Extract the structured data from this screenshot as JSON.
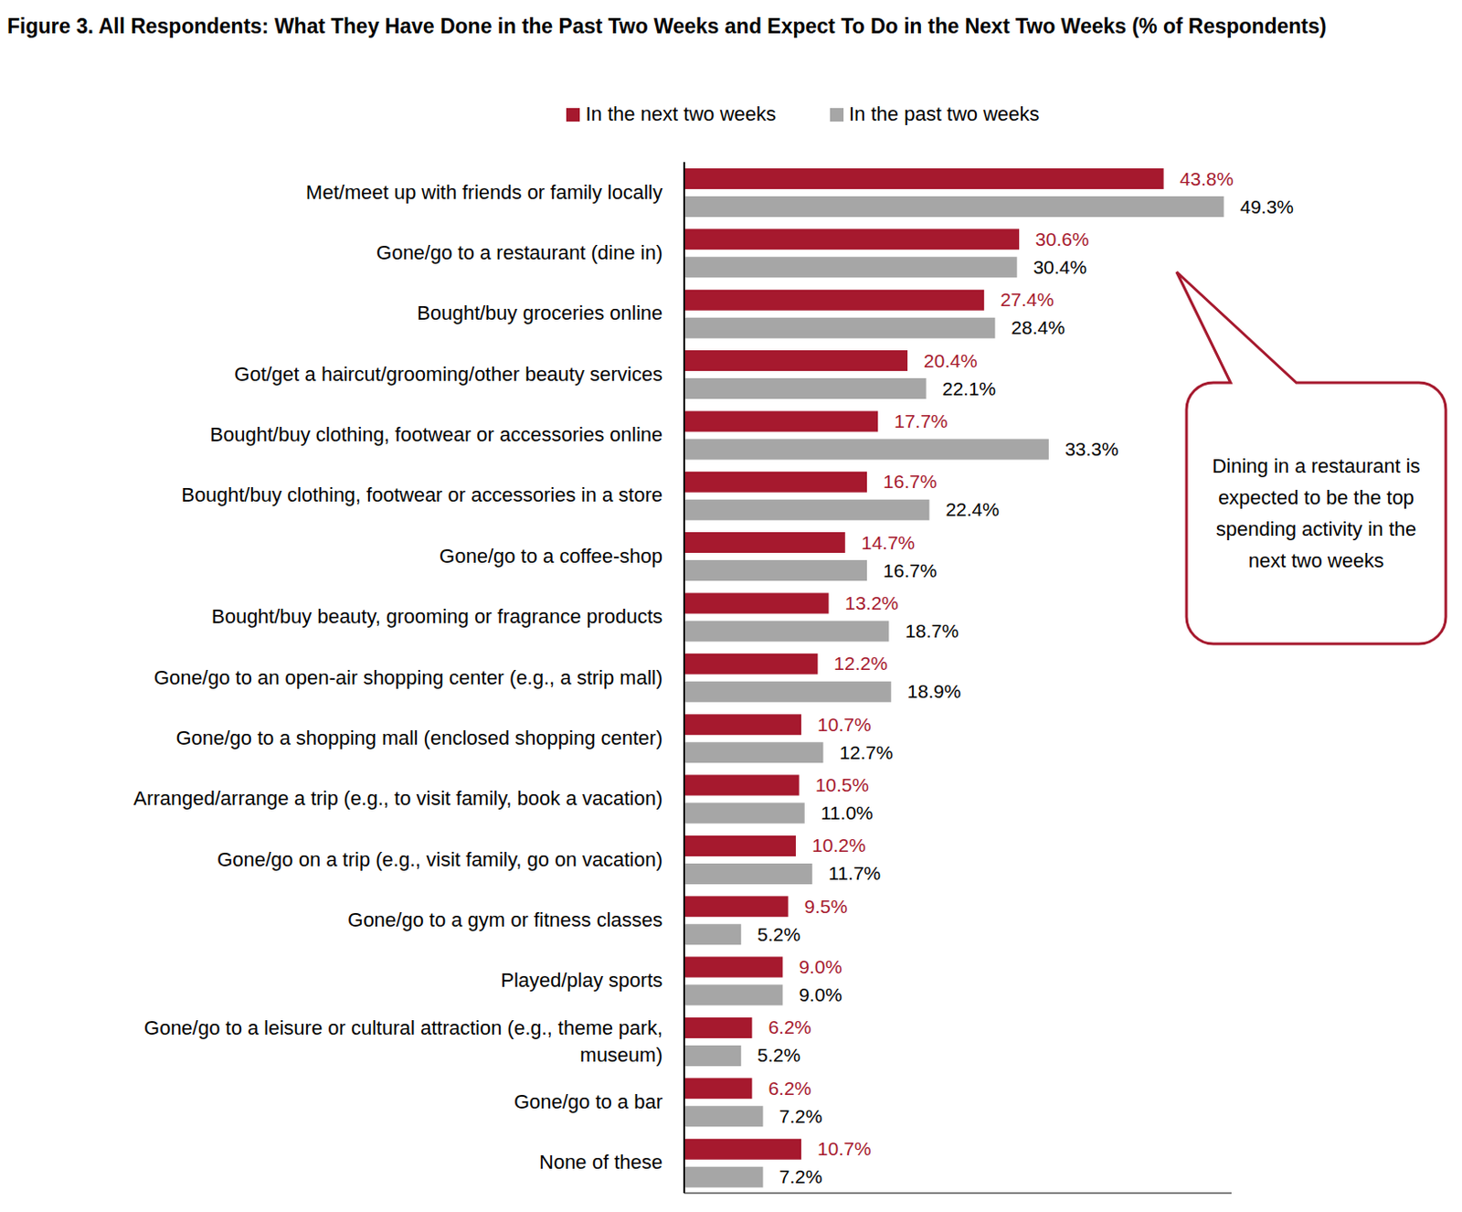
{
  "chart_data": {
    "type": "bar",
    "orientation": "horizontal",
    "title": "Figure 3. All Respondents: What They Have Done in the Past Two Weeks and Expect To Do in the Next Two Weeks (% of Respondents)",
    "categories": [
      "Met/meet up with friends or family locally",
      "Gone/go to a restaurant (dine in)",
      "Bought/buy groceries online",
      "Got/get a haircut/grooming/other beauty services",
      "Bought/buy clothing, footwear or accessories online",
      "Bought/buy clothing, footwear or accessories in a store",
      "Gone/go to a coffee-shop",
      "Bought/buy beauty, grooming or fragrance products",
      "Gone/go to an open-air shopping center (e.g., a strip mall)",
      "Gone/go to a shopping mall (enclosed shopping center)",
      "Arranged/arrange a trip (e.g., to visit family, book a vacation)",
      "Gone/go on a trip (e.g., visit family, go on vacation)",
      "Gone/go to a gym or fitness classes",
      "Played/play sports",
      "Gone/go to a leisure or cultural attraction (e.g., theme park, museum)",
      "Gone/go to a bar",
      "None of these"
    ],
    "series": [
      {
        "name": "In the next two weeks",
        "color": "#A6192E",
        "values": [
          43.8,
          30.6,
          27.4,
          20.4,
          17.7,
          16.7,
          14.7,
          13.2,
          12.2,
          10.7,
          10.5,
          10.2,
          9.5,
          9.0,
          6.2,
          6.2,
          10.7
        ],
        "value_labels": [
          "43.8%",
          "30.6%",
          "27.4%",
          "20.4%",
          "17.7%",
          "16.7%",
          "14.7%",
          "13.2%",
          "12.2%",
          "10.7%",
          "10.5%",
          "10.2%",
          "9.5%",
          "9.0%",
          "6.2%",
          "6.2%",
          "10.7%"
        ]
      },
      {
        "name": "In the past two weeks",
        "color": "#A6A6A6",
        "values": [
          49.3,
          30.4,
          28.4,
          22.1,
          33.3,
          22.4,
          16.7,
          18.7,
          18.9,
          12.7,
          11.0,
          11.7,
          5.2,
          9.0,
          5.2,
          7.2,
          7.2
        ],
        "value_labels": [
          "49.3%",
          "30.4%",
          "28.4%",
          "22.1%",
          "33.3%",
          "22.4%",
          "16.7%",
          "18.7%",
          "18.9%",
          "12.7%",
          "11.0%",
          "11.7%",
          "5.2%",
          "9.0%",
          "5.2%",
          "7.2%",
          "7.2%"
        ]
      }
    ],
    "xlim": [
      0,
      50
    ],
    "data_labels": true,
    "tick_labels": "y",
    "legend": "top",
    "annotation": "Dining in a restaurant is expected to be the top spending activity in the next two weeks"
  }
}
